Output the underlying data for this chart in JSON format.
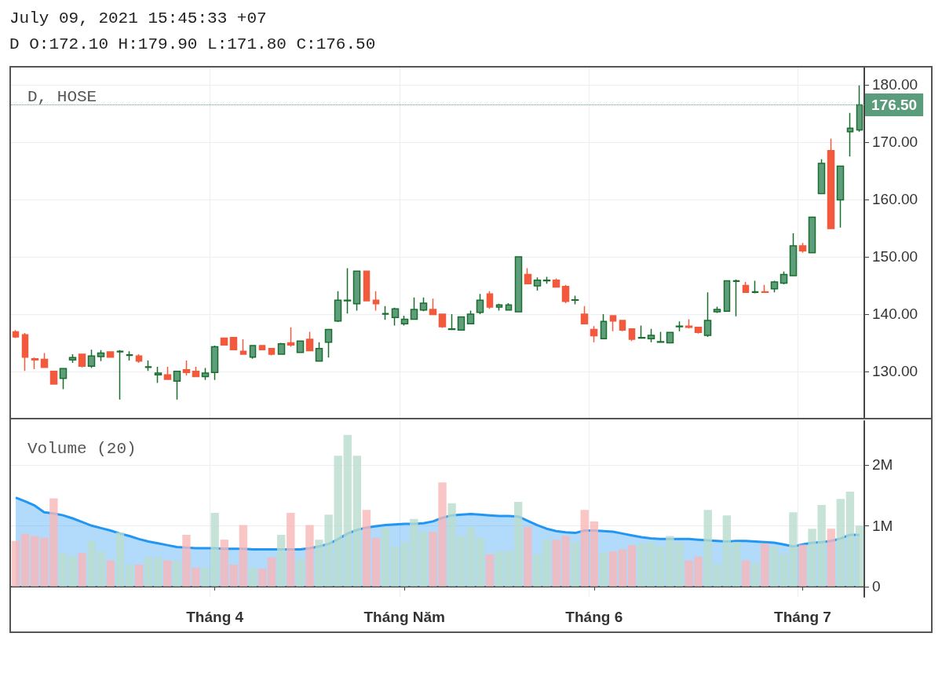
{
  "chart_data": [
    {
      "type": "candlestick",
      "title": "D, HOSE",
      "annotations": [
        "July 09, 2021 15:45:33 +07",
        "D O:172.10 H:179.90 L:171.80 C:176.50"
      ],
      "categories": [
        null,
        null,
        null,
        null,
        null,
        null,
        null,
        null,
        null,
        null,
        null,
        null,
        null,
        null,
        null,
        null,
        null,
        null,
        null,
        null,
        null,
        null,
        null,
        null,
        null,
        null,
        null,
        null,
        null,
        null,
        null,
        null,
        null,
        null,
        null,
        null,
        null,
        null,
        null,
        null,
        null,
        null,
        null,
        null,
        null,
        null,
        null,
        null,
        null,
        null,
        null,
        null,
        null,
        null,
        null,
        null,
        null,
        null,
        null,
        null,
        null,
        null,
        null,
        null,
        null,
        null,
        null,
        null,
        null,
        null,
        null,
        null,
        null,
        null,
        null,
        null,
        null,
        null,
        null,
        null,
        null,
        null,
        null,
        null,
        null,
        null,
        null,
        null,
        null,
        null
      ],
      "ohlc": [
        [
          136.9,
          137.2,
          135.8,
          136.0
        ],
        [
          136.4,
          136.7,
          130.1,
          132.5
        ],
        [
          132.2,
          132.4,
          130.4,
          132.0
        ],
        [
          132.1,
          133.2,
          130.7,
          130.7
        ],
        [
          130.0,
          130.0,
          127.8,
          127.8
        ],
        [
          128.8,
          130.5,
          126.9,
          130.5
        ],
        [
          132.0,
          133.0,
          131.5,
          132.4
        ],
        [
          133.0,
          133.0,
          130.7,
          130.9
        ],
        [
          130.9,
          133.8,
          130.6,
          132.7
        ],
        [
          132.6,
          133.7,
          131.8,
          133.2
        ],
        [
          133.4,
          133.4,
          132.5,
          132.5
        ],
        [
          133.4,
          133.7,
          125.1,
          133.5
        ],
        [
          132.8,
          133.5,
          131.9,
          132.9
        ],
        [
          132.7,
          133.0,
          131.5,
          131.8
        ],
        [
          130.7,
          131.9,
          130.1,
          130.8
        ],
        [
          129.4,
          130.8,
          128.0,
          129.7
        ],
        [
          129.4,
          130.8,
          128.6,
          128.6
        ],
        [
          128.3,
          130.0,
          125.1,
          130.0
        ],
        [
          130.3,
          131.9,
          129.3,
          129.8
        ],
        [
          130.0,
          130.8,
          129.1,
          129.1
        ],
        [
          129.1,
          130.6,
          128.5,
          129.7
        ],
        [
          129.8,
          134.5,
          128.5,
          134.3
        ],
        [
          135.8,
          135.8,
          134.6,
          134.6
        ],
        [
          135.9,
          135.9,
          133.8,
          133.8
        ],
        [
          133.5,
          135.6,
          133.0,
          133.0
        ],
        [
          132.5,
          134.5,
          132.2,
          134.5
        ],
        [
          134.5,
          134.5,
          133.8,
          133.8
        ],
        [
          134.0,
          134.0,
          132.8,
          133.0
        ],
        [
          133.0,
          135.0,
          133.0,
          134.8
        ],
        [
          135.0,
          137.7,
          134.3,
          134.6
        ],
        [
          133.3,
          135.3,
          133.3,
          135.3
        ],
        [
          135.6,
          136.9,
          133.6,
          133.6
        ],
        [
          131.8,
          135.1,
          131.8,
          134.0
        ],
        [
          135.1,
          137.3,
          132.4,
          137.3
        ],
        [
          138.8,
          144.0,
          138.6,
          142.4
        ],
        [
          142.3,
          148.0,
          140.1,
          142.4
        ],
        [
          141.8,
          147.5,
          140.6,
          147.5
        ],
        [
          147.5,
          147.5,
          142.3,
          142.3
        ],
        [
          142.4,
          144.0,
          140.6,
          141.8
        ],
        [
          140.0,
          141.4,
          139.0,
          140.1
        ],
        [
          139.4,
          141.1,
          138.0,
          140.9
        ],
        [
          138.3,
          139.7,
          138.0,
          139.1
        ],
        [
          139.1,
          142.9,
          139.1,
          140.8
        ],
        [
          140.7,
          142.9,
          140.5,
          141.9
        ],
        [
          140.8,
          142.7,
          139.9,
          139.9
        ],
        [
          140.0,
          140.0,
          137.6,
          137.8
        ],
        [
          137.3,
          140.0,
          137.3,
          137.4
        ],
        [
          137.2,
          139.5,
          137.2,
          139.5
        ],
        [
          138.3,
          140.6,
          138.3,
          140.0
        ],
        [
          140.3,
          143.5,
          140.0,
          142.4
        ],
        [
          143.5,
          144.0,
          140.9,
          141.2
        ],
        [
          141.2,
          141.8,
          140.6,
          141.6
        ],
        [
          140.7,
          141.9,
          140.7,
          141.6
        ],
        [
          140.4,
          150.0,
          140.4,
          150.0
        ],
        [
          146.9,
          148.0,
          145.3,
          145.3
        ],
        [
          144.9,
          146.4,
          144.1,
          145.9
        ],
        [
          145.8,
          146.5,
          145.3,
          145.9
        ],
        [
          145.9,
          146.2,
          144.7,
          144.7
        ],
        [
          144.8,
          145.1,
          141.9,
          142.2
        ],
        [
          142.4,
          143.2,
          141.7,
          142.5
        ],
        [
          140.0,
          141.4,
          138.3,
          138.3
        ],
        [
          137.3,
          137.9,
          135.1,
          136.2
        ],
        [
          135.7,
          140.0,
          135.7,
          138.7
        ],
        [
          139.7,
          139.7,
          137.0,
          138.8
        ],
        [
          138.9,
          138.9,
          137.0,
          137.2
        ],
        [
          137.4,
          137.4,
          135.3,
          135.6
        ],
        [
          135.8,
          138.0,
          135.7,
          135.9
        ],
        [
          135.7,
          137.4,
          135.1,
          136.3
        ],
        [
          135.1,
          136.9,
          135.1,
          135.2
        ],
        [
          135.0,
          136.8,
          135.0,
          136.8
        ],
        [
          137.8,
          138.7,
          137.0,
          137.9
        ],
        [
          137.9,
          139.1,
          137.5,
          137.7
        ],
        [
          137.7,
          137.7,
          136.6,
          136.8
        ],
        [
          136.3,
          143.8,
          136.0,
          138.9
        ],
        [
          140.4,
          141.3,
          140.2,
          140.8
        ],
        [
          140.5,
          145.8,
          140.5,
          145.8
        ],
        [
          145.7,
          146.0,
          139.6,
          145.8
        ],
        [
          145.0,
          145.6,
          143.8,
          143.8
        ],
        [
          143.8,
          145.8,
          143.6,
          143.9
        ],
        [
          143.9,
          145.1,
          143.8,
          143.8
        ],
        [
          144.4,
          145.8,
          143.8,
          145.6
        ],
        [
          145.4,
          147.4,
          145.2,
          146.9
        ],
        [
          146.7,
          154.1,
          146.7,
          151.9
        ],
        [
          151.9,
          152.4,
          150.7,
          151.0
        ],
        [
          150.7,
          156.9,
          150.7,
          156.9
        ],
        [
          161.0,
          167.0,
          161.0,
          166.3
        ],
        [
          168.5,
          170.6,
          154.9,
          154.9
        ],
        [
          159.9,
          165.8,
          155.1,
          165.8
        ],
        [
          171.8,
          175.1,
          167.5,
          172.4
        ],
        [
          172.1,
          179.9,
          171.8,
          176.5
        ]
      ],
      "ylim": [
        121.9,
        183.0
      ],
      "yticks": [
        {
          "value": 130,
          "label": "130.00"
        },
        {
          "value": 140,
          "label": "140.00"
        },
        {
          "value": 150,
          "label": "150.00"
        },
        {
          "value": 160,
          "label": "160.00"
        },
        {
          "value": 170,
          "label": "170.00"
        },
        {
          "value": 180,
          "label": "180.00"
        }
      ],
      "ref_lines": [
        {
          "axis": "y",
          "value": 176.5,
          "label": "176.50",
          "color": "#5b9c7c",
          "line_style": "dotted"
        }
      ],
      "grid": true,
      "tick_labels": "y"
    },
    {
      "type": "bar",
      "title": "Volume (20)",
      "categories": [
        null,
        null,
        null,
        null,
        null,
        null,
        null,
        null,
        null,
        null,
        null,
        null,
        null,
        null,
        null,
        null,
        null,
        null,
        null,
        null,
        null,
        "Tháng 4",
        null,
        null,
        null,
        null,
        null,
        null,
        null,
        null,
        null,
        null,
        null,
        null,
        null,
        null,
        null,
        null,
        null,
        null,
        null,
        "Tháng Năm",
        null,
        null,
        null,
        null,
        null,
        null,
        null,
        null,
        null,
        null,
        null,
        null,
        null,
        null,
        null,
        null,
        null,
        null,
        null,
        "Tháng 6",
        null,
        null,
        null,
        null,
        null,
        null,
        null,
        null,
        null,
        null,
        null,
        null,
        null,
        null,
        null,
        null,
        null,
        null,
        null,
        null,
        null,
        "Tháng 7",
        null,
        null,
        null,
        null,
        null,
        null
      ],
      "series": [
        {
          "type": "bar",
          "values": [
            0.75,
            0.87,
            0.83,
            0.8,
            1.45,
            0.55,
            0.5,
            0.55,
            0.75,
            0.58,
            0.43,
            0.89,
            0.36,
            0.36,
            0.48,
            0.48,
            0.43,
            0.43,
            0.85,
            0.31,
            0.31,
            1.21,
            0.77,
            0.36,
            1.01,
            0.31,
            0.29,
            0.48,
            0.85,
            1.21,
            0.46,
            1.01,
            0.77,
            1.18,
            2.15,
            2.49,
            2.15,
            1.26,
            0.8,
            0.96,
            0.65,
            0.73,
            1.11,
            0.9,
            0.9,
            1.71,
            1.37,
            0.83,
            0.98,
            0.8,
            0.53,
            0.58,
            0.58,
            1.39,
            0.98,
            0.53,
            0.77,
            0.77,
            0.83,
            0.73,
            1.26,
            1.07,
            0.56,
            0.58,
            0.61,
            0.68,
            0.71,
            0.73,
            0.66,
            0.83,
            0.73,
            0.43,
            0.49,
            1.26,
            0.37,
            1.17,
            0.73,
            0.43,
            0.38,
            0.71,
            0.66,
            0.53,
            1.22,
            0.69,
            0.95,
            1.34,
            0.95,
            1.44,
            1.56,
            1.0
          ],
          "colors": [
            "#f7b7b7",
            "#f7b7b7",
            "#f7b7b7",
            "#f7b7b7",
            "#f7b7b7",
            "#b9dccd",
            "#b9dccd",
            "#f7b7b7",
            "#b9dccd",
            "#b9dccd",
            "#f7b7b7",
            "#b9dccd",
            "#b9dccd",
            "#f7b7b7",
            "#b9dccd",
            "#b9dccd",
            "#f7b7b7",
            "#b9dccd",
            "#f7b7b7",
            "#f7b7b7",
            "#b9dccd",
            "#b9dccd",
            "#f7b7b7",
            "#f7b7b7",
            "#f7b7b7",
            "#b9dccd",
            "#f7b7b7",
            "#f7b7b7",
            "#b9dccd",
            "#f7b7b7",
            "#b9dccd",
            "#f7b7b7",
            "#b9dccd",
            "#b9dccd",
            "#b9dccd",
            "#b9dccd",
            "#b9dccd",
            "#f7b7b7",
            "#f7b7b7",
            "#b9dccd",
            "#b9dccd",
            "#b9dccd",
            "#b9dccd",
            "#b9dccd",
            "#f7b7b7",
            "#f7b7b7",
            "#b9dccd",
            "#b9dccd",
            "#b9dccd",
            "#b9dccd",
            "#f7b7b7",
            "#b9dccd",
            "#b9dccd",
            "#b9dccd",
            "#f7b7b7",
            "#b9dccd",
            "#b9dccd",
            "#f7b7b7",
            "#f7b7b7",
            "#b9dccd",
            "#f7b7b7",
            "#f7b7b7",
            "#b9dccd",
            "#f7b7b7",
            "#f7b7b7",
            "#f7b7b7",
            "#b9dccd",
            "#b9dccd",
            "#b9dccd",
            "#b9dccd",
            "#b9dccd",
            "#f7b7b7",
            "#f7b7b7",
            "#b9dccd",
            "#b9dccd",
            "#b9dccd",
            "#b9dccd",
            "#f7b7b7",
            "#b9dccd",
            "#f7b7b7",
            "#b9dccd",
            "#b9dccd",
            "#b9dccd",
            "#f7b7b7",
            "#b9dccd",
            "#b9dccd",
            "#f7b7b7",
            "#b9dccd",
            "#b9dccd",
            "#b9dccd"
          ]
        },
        {
          "type": "area",
          "color": "#2196f3",
          "values": [
            1.46,
            1.4,
            1.33,
            1.22,
            1.2,
            1.17,
            1.12,
            1.06,
            1.0,
            0.96,
            0.92,
            0.87,
            0.83,
            0.78,
            0.74,
            0.71,
            0.68,
            0.65,
            0.64,
            0.63,
            0.63,
            0.63,
            0.62,
            0.62,
            0.62,
            0.61,
            0.61,
            0.61,
            0.61,
            0.61,
            0.61,
            0.63,
            0.66,
            0.7,
            0.78,
            0.87,
            0.93,
            0.97,
            0.99,
            1.01,
            1.02,
            1.03,
            1.03,
            1.04,
            1.07,
            1.13,
            1.17,
            1.18,
            1.19,
            1.18,
            1.17,
            1.16,
            1.16,
            1.15,
            1.08,
            1.01,
            0.95,
            0.91,
            0.89,
            0.88,
            0.92,
            0.92,
            0.91,
            0.9,
            0.87,
            0.84,
            0.81,
            0.79,
            0.78,
            0.78,
            0.78,
            0.78,
            0.77,
            0.76,
            0.75,
            0.74,
            0.75,
            0.75,
            0.74,
            0.73,
            0.72,
            0.69,
            0.66,
            0.69,
            0.72,
            0.73,
            0.75,
            0.79,
            0.85,
            0.85
          ]
        }
      ],
      "ylim": [
        -0.17,
        2.72
      ],
      "yticks": [
        {
          "value": 0,
          "label": "0"
        },
        {
          "value": 1,
          "label": "1M"
        },
        {
          "value": 2,
          "label": "2M"
        }
      ],
      "grid": true
    }
  ]
}
